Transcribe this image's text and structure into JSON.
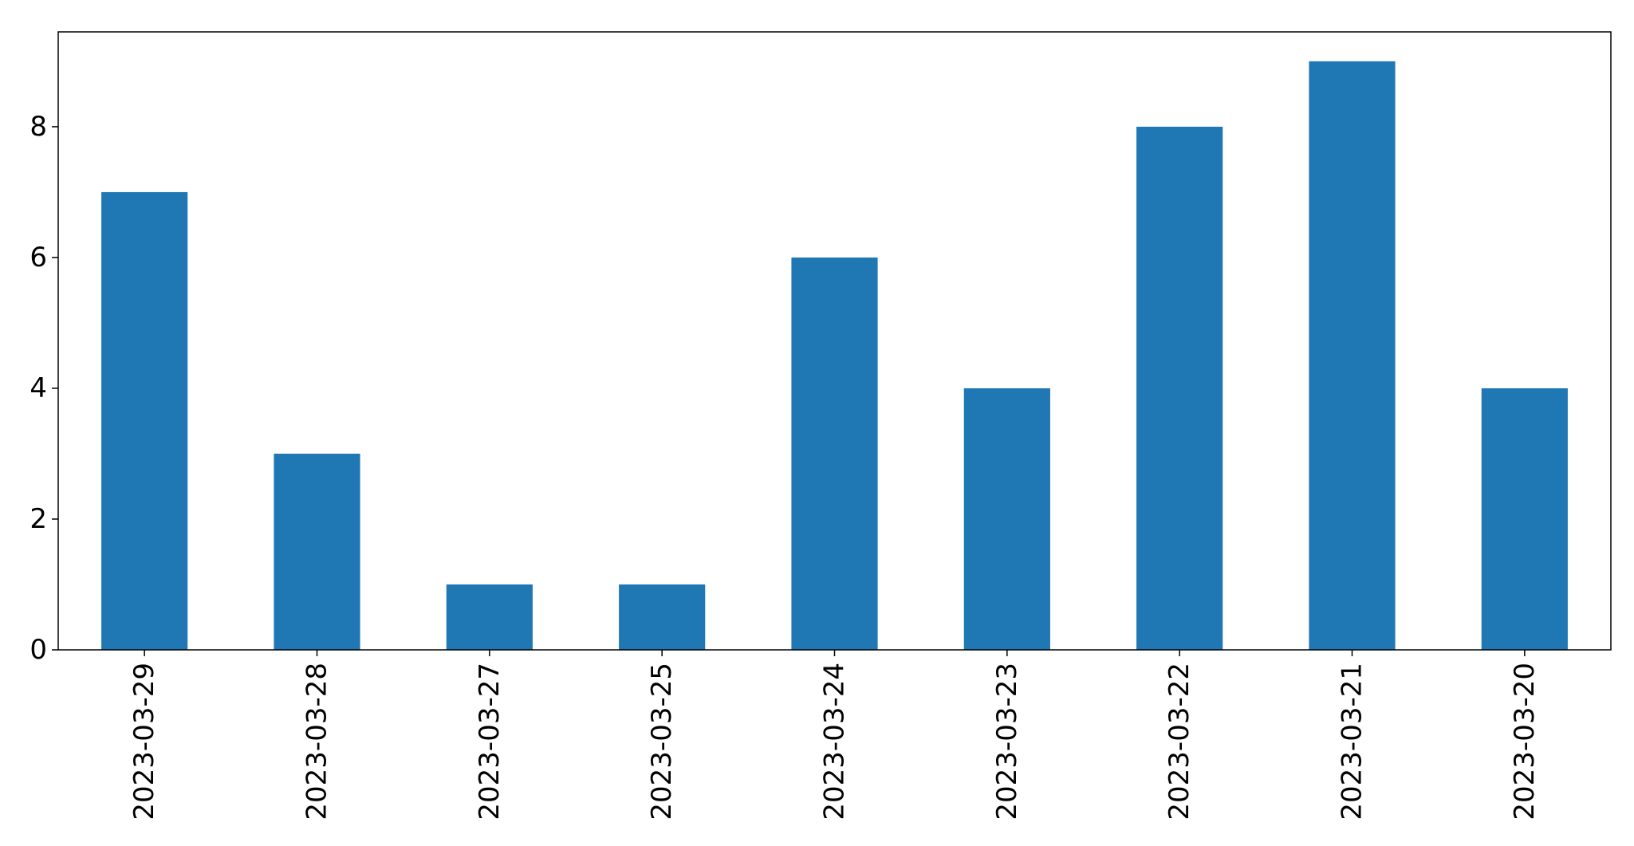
{
  "chart_data": {
    "type": "bar",
    "categories": [
      "2023-03-29",
      "2023-03-28",
      "2023-03-27",
      "2023-03-25",
      "2023-03-24",
      "2023-03-23",
      "2023-03-22",
      "2023-03-21",
      "2023-03-20"
    ],
    "values": [
      7,
      3,
      1,
      1,
      6,
      4,
      8,
      9,
      4
    ],
    "ylim": [
      0,
      9.45
    ],
    "yticks": [
      0,
      2,
      4,
      6,
      8
    ],
    "title": "",
    "xlabel": "",
    "ylabel": "",
    "grid": false,
    "legend": "none",
    "bar_color": "#1f77b4"
  }
}
